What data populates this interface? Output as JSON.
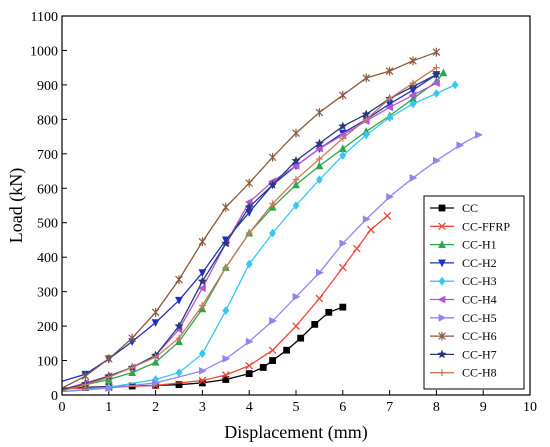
{
  "chart_data": {
    "type": "line",
    "xlabel": "Displacement (mm)",
    "ylabel": "Load (kN)",
    "xlim": [
      0,
      10
    ],
    "ylim": [
      0,
      1100
    ],
    "xticks": [
      0,
      1,
      2,
      3,
      4,
      5,
      6,
      7,
      8,
      9,
      10
    ],
    "yticks": [
      0,
      100,
      200,
      300,
      400,
      500,
      600,
      700,
      800,
      900,
      1000,
      1100
    ],
    "grid": false,
    "legend": "bottom-right",
    "series": [
      {
        "name": "CC",
        "color": "#000000",
        "marker": "square",
        "x": [
          0,
          0.5,
          1.0,
          1.5,
          2.0,
          2.5,
          3.0,
          3.5,
          4.0,
          4.3,
          4.5,
          4.8,
          5.1,
          5.4,
          5.7,
          6.0
        ],
        "y": [
          20,
          22,
          24,
          26,
          28,
          30,
          35,
          45,
          62,
          80,
          100,
          130,
          165,
          205,
          240,
          255
        ]
      },
      {
        "name": "CC-FFRP",
        "color": "#e8493a",
        "marker": "x",
        "x": [
          0,
          1.0,
          2.0,
          3.0,
          3.5,
          4.0,
          4.5,
          5.0,
          5.5,
          6.0,
          6.3,
          6.6,
          6.95
        ],
        "y": [
          18,
          22,
          28,
          42,
          58,
          85,
          130,
          200,
          280,
          370,
          425,
          480,
          520
        ]
      },
      {
        "name": "CC-H1",
        "color": "#2ba84a",
        "marker": "triangle-up",
        "x": [
          0,
          0.5,
          1.0,
          1.5,
          2.0,
          2.5,
          3.0,
          3.5,
          4.0,
          4.5,
          5.0,
          5.5,
          6.0,
          6.5,
          7.0,
          7.5,
          8.0,
          8.15
        ],
        "y": [
          15,
          30,
          45,
          65,
          95,
          155,
          250,
          370,
          470,
          545,
          610,
          665,
          715,
          765,
          810,
          860,
          910,
          935
        ]
      },
      {
        "name": "CC-H2",
        "color": "#1f2fbf",
        "marker": "triangle-down",
        "x": [
          0,
          0.5,
          1.0,
          1.5,
          2.0,
          2.5,
          3.0,
          3.5,
          4.0,
          4.5,
          5.0,
          5.5,
          6.0,
          6.5,
          7.0,
          7.5,
          8.0
        ],
        "y": [
          40,
          60,
          105,
          155,
          210,
          275,
          355,
          450,
          530,
          610,
          665,
          715,
          760,
          800,
          845,
          885,
          930
        ]
      },
      {
        "name": "CC-H3",
        "color": "#38c6f4",
        "marker": "diamond",
        "x": [
          0,
          1.0,
          2.0,
          2.5,
          3.0,
          3.5,
          4.0,
          4.5,
          5.0,
          5.5,
          6.0,
          6.5,
          7.0,
          7.5,
          8.0,
          8.4
        ],
        "y": [
          10,
          22,
          45,
          65,
          120,
          245,
          380,
          470,
          550,
          625,
          695,
          755,
          805,
          845,
          875,
          900
        ]
      },
      {
        "name": "CC-H4",
        "color": "#b355d9",
        "marker": "triangle-left",
        "x": [
          0,
          0.5,
          1.0,
          1.5,
          2.0,
          2.5,
          3.0,
          3.5,
          4.0,
          4.5,
          5.0,
          5.5,
          6.0,
          6.5,
          7.0,
          7.5,
          8.0
        ],
        "y": [
          15,
          35,
          55,
          80,
          115,
          190,
          310,
          440,
          560,
          620,
          665,
          715,
          755,
          795,
          835,
          870,
          905
        ]
      },
      {
        "name": "CC-H5",
        "color": "#8f86f2",
        "marker": "triangle-right",
        "x": [
          0,
          1.0,
          2.0,
          3.0,
          3.5,
          4.0,
          4.5,
          5.0,
          5.5,
          6.0,
          6.5,
          7.0,
          7.5,
          8.0,
          8.5,
          8.9
        ],
        "y": [
          10,
          20,
          35,
          70,
          105,
          155,
          215,
          285,
          355,
          440,
          510,
          575,
          630,
          680,
          725,
          755
        ]
      },
      {
        "name": "CC-H6",
        "color": "#8a5a3a",
        "marker": "star",
        "x": [
          0,
          0.5,
          1.0,
          1.5,
          2.0,
          2.5,
          3.0,
          3.5,
          4.0,
          4.5,
          5.0,
          5.5,
          6.0,
          6.5,
          7.0,
          7.5,
          8.0
        ],
        "y": [
          20,
          55,
          105,
          165,
          240,
          335,
          445,
          545,
          615,
          690,
          760,
          820,
          870,
          920,
          940,
          970,
          995
        ]
      },
      {
        "name": "CC-H7",
        "color": "#2a3a78",
        "marker": "star-filled",
        "x": [
          0,
          0.5,
          1.0,
          1.5,
          2.0,
          2.5,
          3.0,
          3.5,
          4.0,
          4.5,
          5.0,
          5.5,
          6.0,
          6.5,
          7.0,
          7.5,
          8.0
        ],
        "y": [
          15,
          32,
          55,
          80,
          115,
          200,
          330,
          440,
          545,
          610,
          680,
          730,
          780,
          815,
          860,
          895,
          930
        ]
      },
      {
        "name": "CC-H8",
        "color": "#c87a5a",
        "marker": "plus",
        "x": [
          0,
          0.5,
          1.0,
          1.5,
          2.0,
          2.5,
          3.0,
          3.5,
          4.0,
          4.5,
          5.0,
          5.5,
          6.0,
          6.5,
          7.0,
          7.5,
          8.0
        ],
        "y": [
          12,
          30,
          52,
          80,
          110,
          165,
          260,
          370,
          470,
          555,
          625,
          685,
          745,
          800,
          860,
          905,
          950
        ]
      }
    ]
  }
}
